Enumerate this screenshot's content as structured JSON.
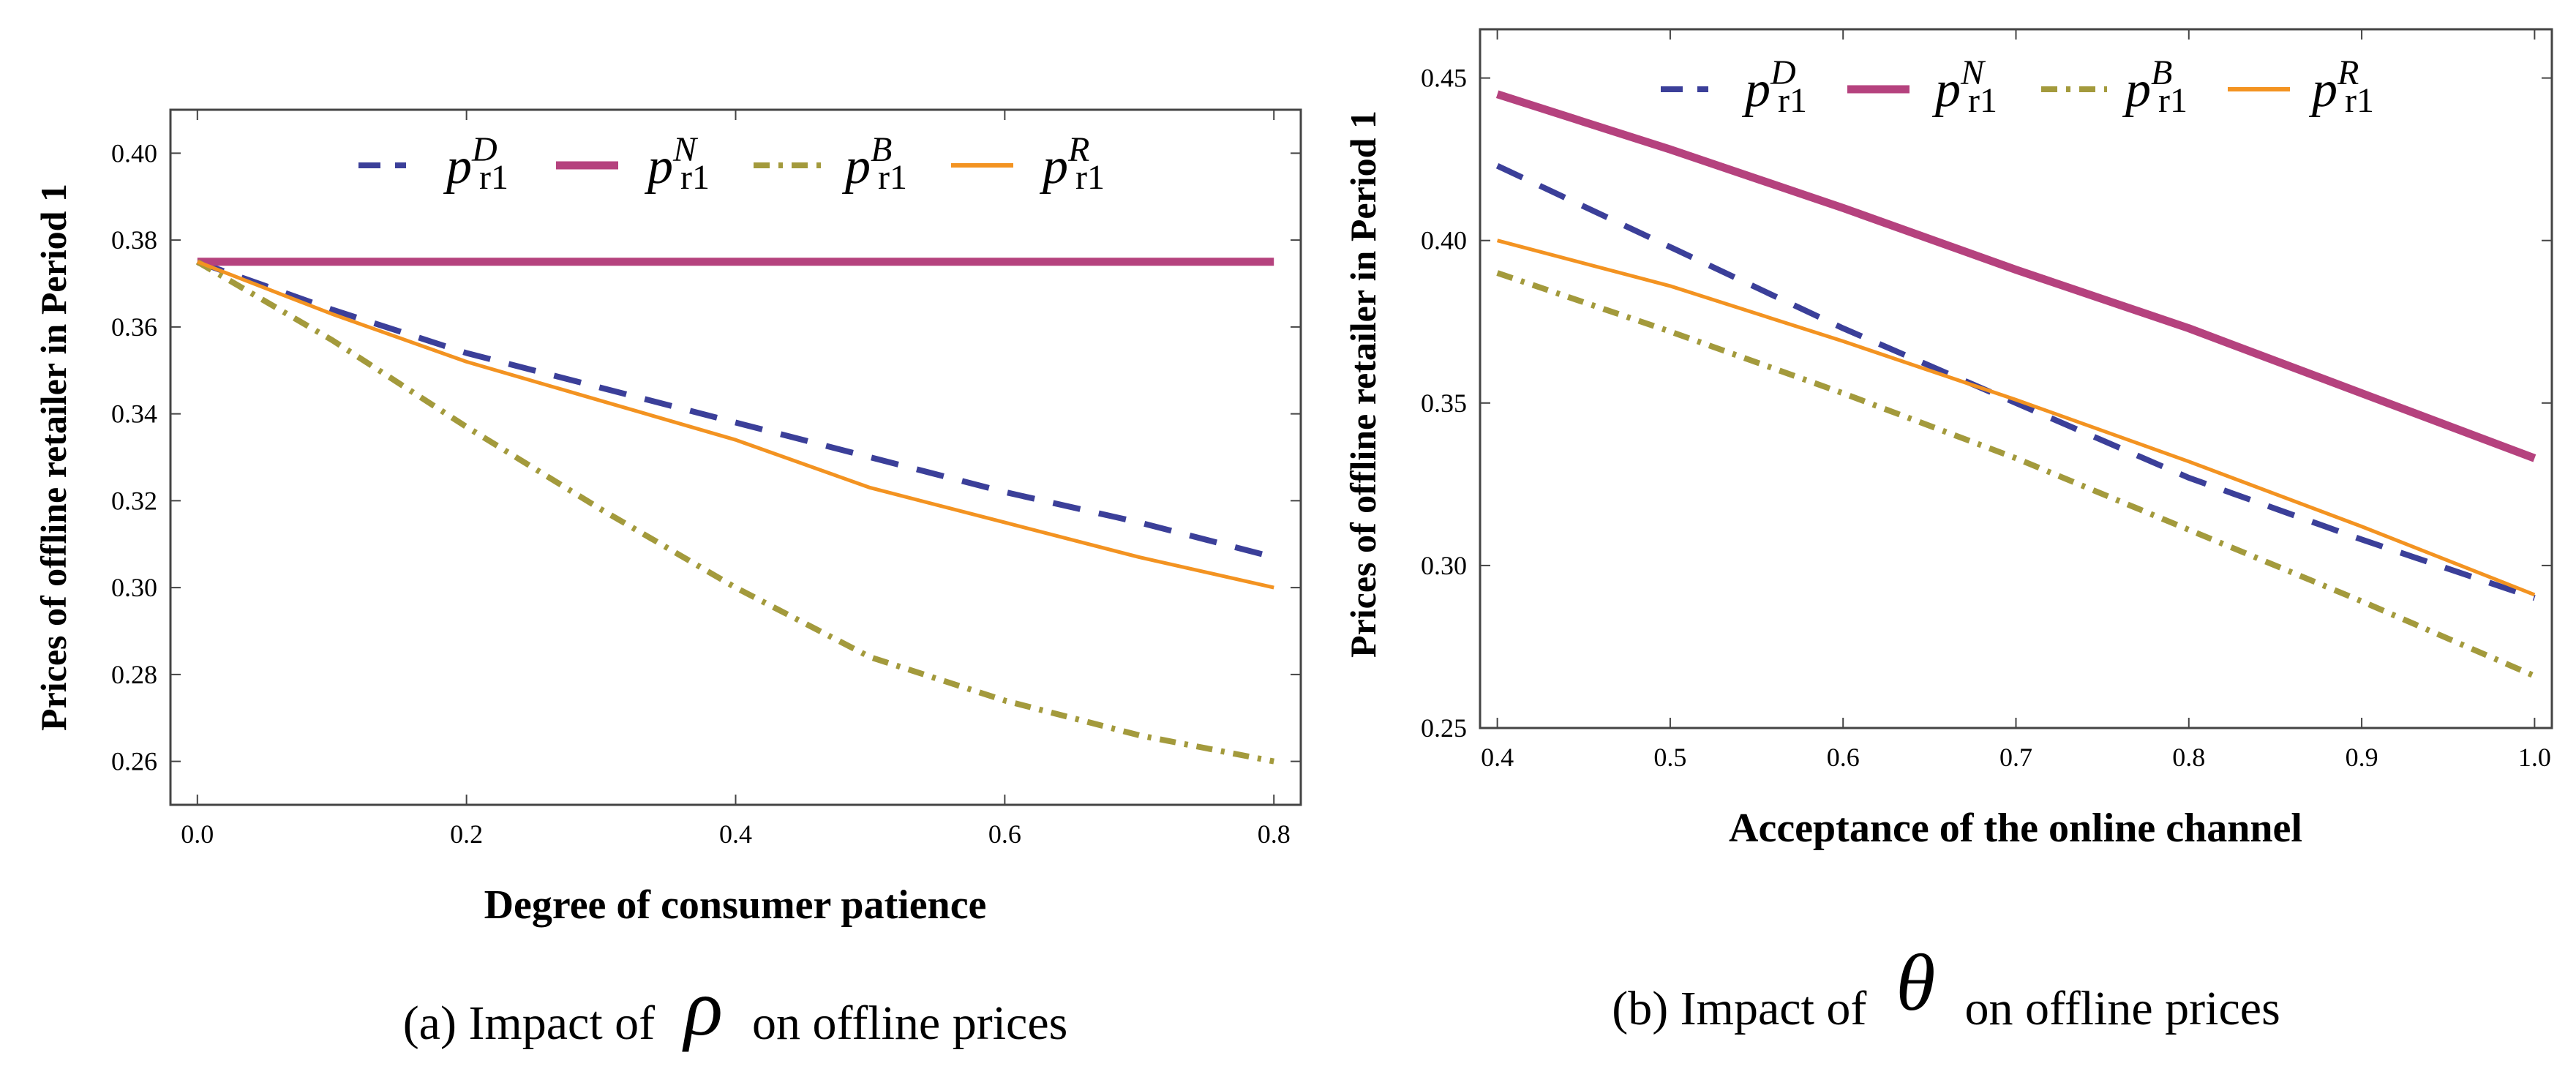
{
  "chart_data": [
    {
      "type": "line",
      "title": "",
      "caption": "(a) Impact of ρ on offline prices",
      "caption_prefix": "(a) Impact of",
      "caption_symbol": "ρ",
      "caption_suffix": "on offline prices",
      "xlabel": "Degree of consumer patience",
      "ylabel": "Prices of offline retailer in Period 1",
      "xlim": [
        -0.02,
        0.82
      ],
      "ylim": [
        0.25,
        0.41
      ],
      "xticks": [
        0.0,
        0.2,
        0.4,
        0.6,
        0.8
      ],
      "xtick_labels": [
        "0.0",
        "0.2",
        "0.4",
        "0.6",
        "0.8"
      ],
      "yticks": [
        0.26,
        0.28,
        0.3,
        0.32,
        0.34,
        0.36,
        0.38,
        0.4
      ],
      "ytick_labels": [
        "0.26",
        "0.28",
        "0.30",
        "0.32",
        "0.34",
        "0.36",
        "0.38",
        "0.40"
      ],
      "legend_position": "top",
      "series": [
        {
          "name": "p",
          "sup": "D",
          "sub": "r1",
          "color": "#3b3f99",
          "style": "dashed",
          "x": [
            0.0,
            0.1,
            0.2,
            0.3,
            0.4,
            0.5,
            0.6,
            0.7,
            0.8
          ],
          "y": [
            0.375,
            0.364,
            0.354,
            0.346,
            0.338,
            0.33,
            0.322,
            0.315,
            0.307
          ]
        },
        {
          "name": "p",
          "sup": "N",
          "sub": "r1",
          "color": "#b5427e",
          "style": "solid-thick",
          "x": [
            0.0,
            0.8
          ],
          "y": [
            0.375,
            0.375
          ]
        },
        {
          "name": "p",
          "sup": "B",
          "sub": "r1",
          "color": "#a39a3c",
          "style": "dashdot",
          "x": [
            0.0,
            0.1,
            0.2,
            0.3,
            0.4,
            0.5,
            0.6,
            0.7,
            0.8
          ],
          "y": [
            0.375,
            0.357,
            0.337,
            0.318,
            0.3,
            0.284,
            0.274,
            0.266,
            0.26
          ]
        },
        {
          "name": "p",
          "sup": "R",
          "sub": "r1",
          "color": "#f39321",
          "style": "solid",
          "x": [
            0.0,
            0.1,
            0.2,
            0.3,
            0.4,
            0.5,
            0.6,
            0.7,
            0.8
          ],
          "y": [
            0.375,
            0.363,
            0.352,
            0.343,
            0.334,
            0.323,
            0.315,
            0.307,
            0.3
          ]
        }
      ]
    },
    {
      "type": "line",
      "title": "",
      "caption": "(b) Impact of θ on offline prices",
      "caption_prefix": "(b) Impact of",
      "caption_symbol": "θ",
      "caption_suffix": "on offline prices",
      "xlabel": "Acceptance of the online channel",
      "ylabel": "Prices of offline retailer in Period 1",
      "xlim": [
        0.39,
        1.01
      ],
      "ylim": [
        0.25,
        0.465
      ],
      "xticks": [
        0.4,
        0.5,
        0.6,
        0.7,
        0.8,
        0.9,
        1.0
      ],
      "xtick_labels": [
        "0.4",
        "0.5",
        "0.6",
        "0.7",
        "0.8",
        "0.9",
        "1.0"
      ],
      "yticks": [
        0.25,
        0.3,
        0.35,
        0.4,
        0.45
      ],
      "ytick_labels": [
        "0.25",
        "0.30",
        "0.35",
        "0.40",
        "0.45"
      ],
      "legend_position": "top",
      "series": [
        {
          "name": "p",
          "sup": "D",
          "sub": "r1",
          "color": "#3b3f99",
          "style": "dashed",
          "x": [
            0.4,
            0.5,
            0.6,
            0.7,
            0.8,
            0.9,
            1.0
          ],
          "y": [
            0.423,
            0.398,
            0.373,
            0.35,
            0.327,
            0.308,
            0.29
          ]
        },
        {
          "name": "p",
          "sup": "N",
          "sub": "r1",
          "color": "#b5427e",
          "style": "solid-thick",
          "x": [
            0.4,
            0.5,
            0.6,
            0.7,
            0.8,
            0.9,
            1.0
          ],
          "y": [
            0.445,
            0.428,
            0.41,
            0.391,
            0.373,
            0.353,
            0.333
          ]
        },
        {
          "name": "p",
          "sup": "B",
          "sub": "r1",
          "color": "#a39a3c",
          "style": "dashdot",
          "x": [
            0.4,
            0.5,
            0.6,
            0.7,
            0.8,
            0.9,
            1.0
          ],
          "y": [
            0.39,
            0.372,
            0.353,
            0.333,
            0.311,
            0.289,
            0.266
          ]
        },
        {
          "name": "p",
          "sup": "R",
          "sub": "r1",
          "color": "#f39321",
          "style": "solid",
          "x": [
            0.4,
            0.5,
            0.6,
            0.7,
            0.8,
            0.9,
            1.0
          ],
          "y": [
            0.4,
            0.386,
            0.369,
            0.351,
            0.332,
            0.312,
            0.291
          ]
        }
      ]
    }
  ]
}
